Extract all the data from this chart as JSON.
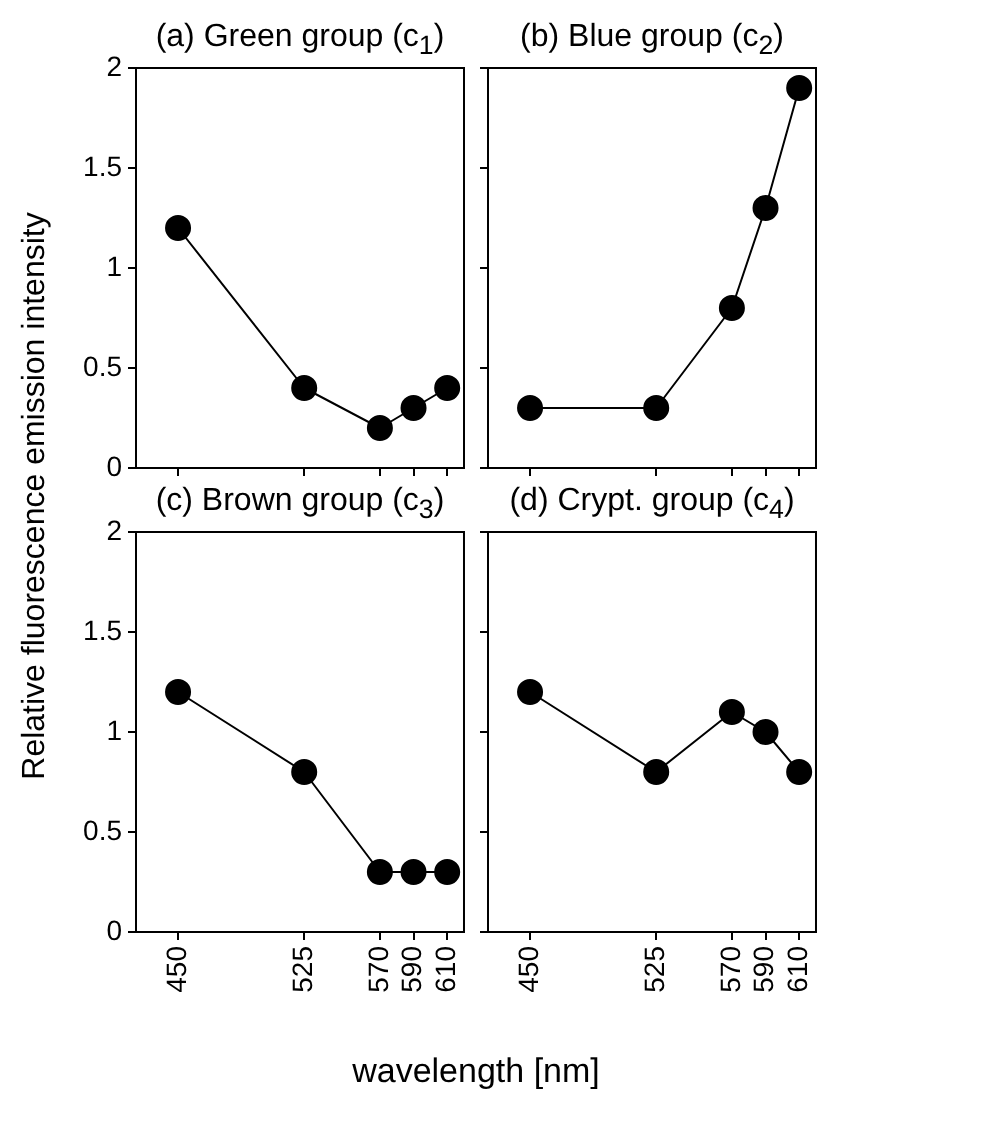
{
  "chart_data": [
    {
      "type": "line",
      "title": "(a) Green group (c$_{1}$)",
      "ylabel": "Relative fluorescence emission intensity",
      "x": [
        450,
        525,
        570,
        590,
        610
      ],
      "xlim": [
        425,
        620
      ],
      "xticks": [
        450,
        525,
        570,
        590,
        610
      ],
      "ylim": [
        0,
        2
      ],
      "yticks": [
        0,
        0.5,
        1,
        1.5,
        2
      ],
      "tick_labels": "y",
      "marker": "circle",
      "grid": false,
      "series": [
        {
          "color": "#000000",
          "values": [
            1.2,
            0.4,
            0.2,
            0.3,
            0.4
          ]
        }
      ]
    },
    {
      "type": "line",
      "title": "(b) Blue group (c$_{2}$)",
      "x": [
        450,
        525,
        570,
        590,
        610
      ],
      "xlim": [
        425,
        620
      ],
      "xticks": [
        450,
        525,
        570,
        590,
        610
      ],
      "ylim": [
        0,
        2
      ],
      "yticks": [
        0,
        0.5,
        1,
        1.5,
        2
      ],
      "tick_labels": false,
      "marker": "circle",
      "grid": false,
      "series": [
        {
          "color": "#000000",
          "values": [
            0.3,
            0.3,
            0.8,
            1.3,
            1.9
          ]
        }
      ]
    },
    {
      "type": "line",
      "title": "(c) Brown group (c$_{3}$)",
      "xlabel": "wavelength [nm]",
      "x": [
        450,
        525,
        570,
        590,
        610
      ],
      "xlim": [
        425,
        620
      ],
      "xticks": [
        450,
        525,
        570,
        590,
        610
      ],
      "ylim": [
        0,
        2
      ],
      "yticks": [
        0,
        0.5,
        1,
        1.5,
        2
      ],
      "marker": "circle",
      "grid": false,
      "series": [
        {
          "color": "#000000",
          "values": [
            1.2,
            0.8,
            0.3,
            0.3,
            0.3
          ]
        }
      ]
    },
    {
      "type": "line",
      "title": "(d) Crypt. group (c$_{4}$)",
      "x": [
        450,
        525,
        570,
        590,
        610
      ],
      "xlim": [
        425,
        620
      ],
      "xticks": [
        450,
        525,
        570,
        590,
        610
      ],
      "ylim": [
        0,
        2
      ],
      "yticks": [
        0,
        0.5,
        1,
        1.5,
        2
      ],
      "tick_labels": "x",
      "marker": "circle",
      "grid": false,
      "series": [
        {
          "color": "#000000",
          "values": [
            1.2,
            0.8,
            1.1,
            1.0,
            0.8
          ]
        }
      ]
    }
  ]
}
